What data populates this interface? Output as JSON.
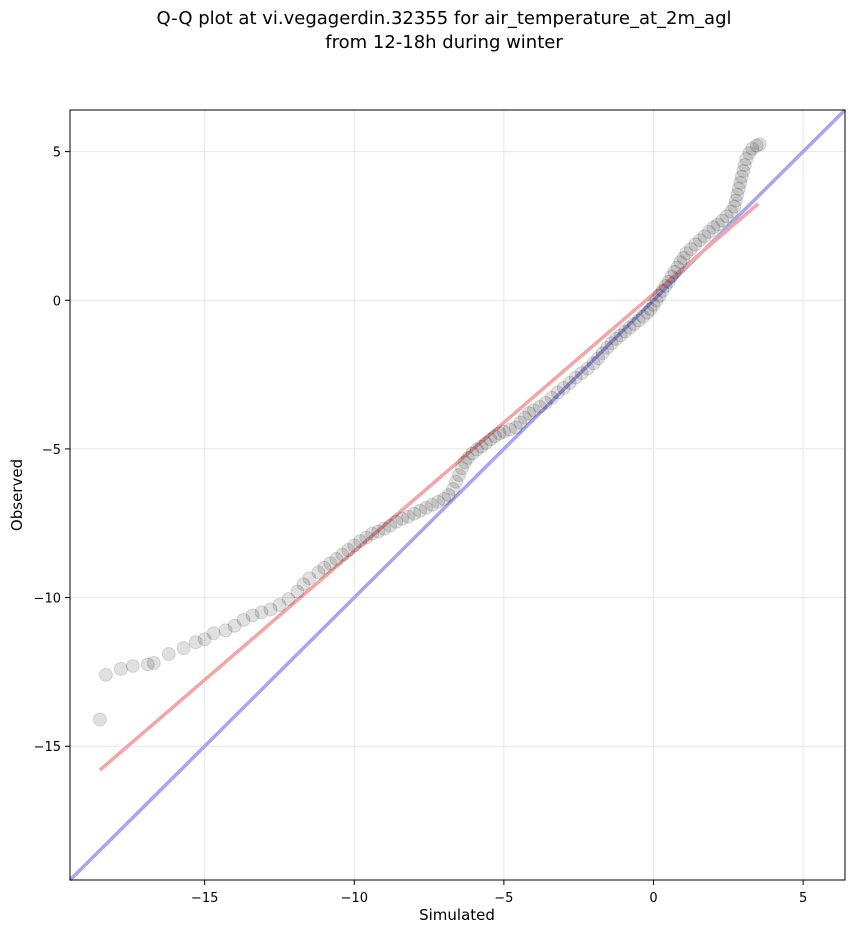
{
  "chart_data": {
    "type": "scatter",
    "title_line1": "Q-Q plot at vi.vegagerdin.32355 for air_temperature_at_2m_agl",
    "title_line2": "from 12-18h during winter",
    "xlabel": "Simulated",
    "ylabel": "Observed",
    "xlim": [
      -19.5,
      6.4
    ],
    "ylim": [
      -19.5,
      6.4
    ],
    "xticks": [
      -15,
      -10,
      -5,
      0,
      5
    ],
    "yticks": [
      5,
      0,
      -5,
      -10,
      -15
    ],
    "xtick_labels": [
      "−15",
      "−10",
      "−5",
      "0",
      "5"
    ],
    "ytick_labels": [
      "5",
      "0",
      "−5",
      "−10",
      "−15"
    ],
    "grid": true,
    "identity_line": {
      "color": "#a6a6f2",
      "x": [
        -19.5,
        6.4
      ],
      "y": [
        -19.5,
        6.4
      ]
    },
    "fit_line": {
      "color": "#f2a6a6",
      "x": [
        -18.5,
        3.5
      ],
      "y": [
        -15.8,
        3.25
      ]
    },
    "point_color": "#000000",
    "points": [
      [
        -18.5,
        -14.1
      ],
      [
        -18.3,
        -12.6
      ],
      [
        -17.8,
        -12.4
      ],
      [
        -17.4,
        -12.3
      ],
      [
        -16.9,
        -12.25
      ],
      [
        -16.7,
        -12.2
      ],
      [
        -16.2,
        -11.9
      ],
      [
        -15.7,
        -11.7
      ],
      [
        -15.3,
        -11.5
      ],
      [
        -15.0,
        -11.4
      ],
      [
        -14.7,
        -11.2
      ],
      [
        -14.3,
        -11.1
      ],
      [
        -14.0,
        -10.95
      ],
      [
        -13.7,
        -10.75
      ],
      [
        -13.4,
        -10.6
      ],
      [
        -13.1,
        -10.5
      ],
      [
        -12.8,
        -10.4
      ],
      [
        -12.5,
        -10.25
      ],
      [
        -12.2,
        -10.05
      ],
      [
        -11.9,
        -9.8
      ],
      [
        -11.7,
        -9.55
      ],
      [
        -11.5,
        -9.35
      ],
      [
        -11.2,
        -9.15
      ],
      [
        -11.0,
        -9.0
      ],
      [
        -10.8,
        -8.85
      ],
      [
        -10.6,
        -8.7
      ],
      [
        -10.4,
        -8.55
      ],
      [
        -10.2,
        -8.4
      ],
      [
        -10.0,
        -8.25
      ],
      [
        -9.8,
        -8.1
      ],
      [
        -9.6,
        -7.98
      ],
      [
        -9.4,
        -7.85
      ],
      [
        -9.2,
        -7.78
      ],
      [
        -9.0,
        -7.68
      ],
      [
        -8.8,
        -7.58
      ],
      [
        -8.6,
        -7.45
      ],
      [
        -8.4,
        -7.35
      ],
      [
        -8.2,
        -7.28
      ],
      [
        -8.0,
        -7.18
      ],
      [
        -7.8,
        -7.08
      ],
      [
        -7.6,
        -6.98
      ],
      [
        -7.4,
        -6.88
      ],
      [
        -7.2,
        -6.78
      ],
      [
        -7.0,
        -6.68
      ],
      [
        -6.85,
        -6.55
      ],
      [
        -6.7,
        -6.35
      ],
      [
        -6.6,
        -6.1
      ],
      [
        -6.5,
        -5.88
      ],
      [
        -6.4,
        -5.65
      ],
      [
        -6.3,
        -5.45
      ],
      [
        -6.2,
        -5.3
      ],
      [
        -6.05,
        -5.15
      ],
      [
        -5.9,
        -5.02
      ],
      [
        -5.75,
        -4.92
      ],
      [
        -5.6,
        -4.8
      ],
      [
        -5.45,
        -4.68
      ],
      [
        -5.3,
        -4.58
      ],
      [
        -5.15,
        -4.48
      ],
      [
        -5.0,
        -4.42
      ],
      [
        -4.8,
        -4.35
      ],
      [
        -4.6,
        -4.28
      ],
      [
        -4.45,
        -4.12
      ],
      [
        -4.3,
        -3.95
      ],
      [
        -4.15,
        -3.8
      ],
      [
        -4.0,
        -3.7
      ],
      [
        -3.8,
        -3.58
      ],
      [
        -3.6,
        -3.45
      ],
      [
        -3.4,
        -3.28
      ],
      [
        -3.2,
        -3.1
      ],
      [
        -3.0,
        -2.95
      ],
      [
        -2.8,
        -2.78
      ],
      [
        -2.6,
        -2.6
      ],
      [
        -2.4,
        -2.45
      ],
      [
        -2.2,
        -2.3
      ],
      [
        -2.0,
        -2.12
      ],
      [
        -1.85,
        -1.95
      ],
      [
        -1.7,
        -1.78
      ],
      [
        -1.55,
        -1.6
      ],
      [
        -1.4,
        -1.45
      ],
      [
        -1.25,
        -1.3
      ],
      [
        -1.1,
        -1.18
      ],
      [
        -0.95,
        -1.05
      ],
      [
        -0.8,
        -0.92
      ],
      [
        -0.65,
        -0.8
      ],
      [
        -0.5,
        -0.68
      ],
      [
        -0.35,
        -0.55
      ],
      [
        -0.2,
        -0.42
      ],
      [
        -0.1,
        -0.3
      ],
      [
        0.0,
        -0.15
      ],
      [
        0.1,
        0.0
      ],
      [
        0.2,
        0.15
      ],
      [
        0.3,
        0.32
      ],
      [
        0.4,
        0.48
      ],
      [
        0.5,
        0.62
      ],
      [
        0.6,
        0.8
      ],
      [
        0.7,
        0.95
      ],
      [
        0.8,
        1.1
      ],
      [
        0.9,
        1.28
      ],
      [
        1.0,
        1.42
      ],
      [
        1.1,
        1.58
      ],
      [
        1.25,
        1.72
      ],
      [
        1.4,
        1.88
      ],
      [
        1.55,
        2.02
      ],
      [
        1.7,
        2.15
      ],
      [
        1.85,
        2.3
      ],
      [
        2.0,
        2.45
      ],
      [
        2.15,
        2.55
      ],
      [
        2.3,
        2.68
      ],
      [
        2.45,
        2.82
      ],
      [
        2.6,
        2.98
      ],
      [
        2.7,
        3.15
      ],
      [
        2.75,
        3.35
      ],
      [
        2.8,
        3.55
      ],
      [
        2.85,
        3.75
      ],
      [
        2.9,
        3.95
      ],
      [
        2.95,
        4.15
      ],
      [
        3.0,
        4.35
      ],
      [
        3.05,
        4.55
      ],
      [
        3.1,
        4.75
      ],
      [
        3.2,
        4.95
      ],
      [
        3.3,
        5.1
      ],
      [
        3.45,
        5.2
      ],
      [
        3.55,
        5.25
      ]
    ]
  }
}
